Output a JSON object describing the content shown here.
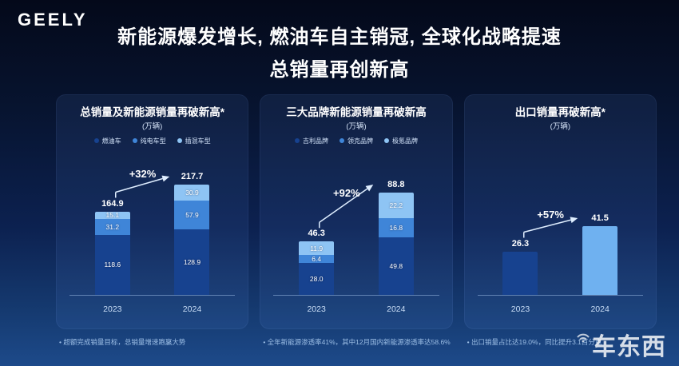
{
  "logo": "GEELY",
  "title": {
    "line1": "新能源爆发增长, 燃油车自主销冠, 全球化战略提速",
    "line2": "总销量再创新高"
  },
  "watermark": "车东西",
  "panels": [
    {
      "title": "总销量及新能源销量再破新高*",
      "unit": "(万辆)",
      "growth": "+32%",
      "legend": [
        {
          "label": "燃油车",
          "color": "#17428f"
        },
        {
          "label": "纯电车型",
          "color": "#3f85d8"
        },
        {
          "label": "插混车型",
          "color": "#8ec4f4"
        }
      ],
      "bars": [
        {
          "category": "2023",
          "total": "164.9",
          "segments": [
            {
              "label": "118.6",
              "value": 118.6,
              "color": "#17428f"
            },
            {
              "label": "31.2",
              "value": 31.2,
              "color": "#3f85d8"
            },
            {
              "label": "15.1",
              "value": 15.1,
              "color": "#8ec4f4"
            }
          ]
        },
        {
          "category": "2024",
          "total": "217.7",
          "segments": [
            {
              "label": "128.9",
              "value": 128.9,
              "color": "#17428f"
            },
            {
              "label": "57.9",
              "value": 57.9,
              "color": "#3f85d8"
            },
            {
              "label": "30.9",
              "value": 30.9,
              "color": "#8ec4f4"
            }
          ]
        }
      ],
      "footnote": "• 超额完成销量目标，总销量增速跑赢大势"
    },
    {
      "title": "三大品牌新能源销量再破新高",
      "unit": "(万辆)",
      "growth": "+92%",
      "legend": [
        {
          "label": "吉利品牌",
          "color": "#17428f"
        },
        {
          "label": "领克品牌",
          "color": "#3f85d8"
        },
        {
          "label": "极氪品牌",
          "color": "#8ec4f4"
        }
      ],
      "bars": [
        {
          "category": "2023",
          "total": "46.3",
          "segments": [
            {
              "label": "28.0",
              "value": 28.0,
              "color": "#17428f"
            },
            {
              "label": "6.4",
              "value": 6.4,
              "color": "#3f85d8"
            },
            {
              "label": "11.9",
              "value": 11.9,
              "color": "#8ec4f4"
            }
          ]
        },
        {
          "category": "2024",
          "total": "88.8",
          "segments": [
            {
              "label": "49.8",
              "value": 49.8,
              "color": "#17428f"
            },
            {
              "label": "16.8",
              "value": 16.8,
              "color": "#3f85d8"
            },
            {
              "label": "22.2",
              "value": 22.2,
              "color": "#8ec4f4"
            }
          ]
        }
      ],
      "footnote": "• 全年新能源渗透率41%，其中12月国内新能源渗透率达58.6%"
    },
    {
      "title": "出口销量再破新高*",
      "unit": "(万辆)",
      "growth": "+57%",
      "legend": [],
      "bars": [
        {
          "category": "2023",
          "total": "26.3",
          "segments": [
            {
              "label": "",
              "value": 26.3,
              "color": "#17428f"
            }
          ]
        },
        {
          "category": "2024",
          "total": "41.5",
          "segments": [
            {
              "label": "",
              "value": 41.5,
              "color": "#6fb1f0"
            }
          ]
        }
      ],
      "footnote": "• 出口销量占比达19.0%，同比提升3.1百分点"
    }
  ],
  "chart_data": [
    {
      "type": "bar",
      "stacked": true,
      "title": "总销量及新能源销量再破新高*",
      "unit": "万辆",
      "categories": [
        "2023",
        "2024"
      ],
      "series": [
        {
          "name": "燃油车",
          "values": [
            118.6,
            128.9
          ]
        },
        {
          "name": "纯电车型",
          "values": [
            31.2,
            57.9
          ]
        },
        {
          "name": "插混车型",
          "values": [
            15.1,
            30.9
          ]
        }
      ],
      "totals": [
        164.9,
        217.7
      ],
      "growth_label": "+32%",
      "legend_position": "top"
    },
    {
      "type": "bar",
      "stacked": true,
      "title": "三大品牌新能源销量再破新高",
      "unit": "万辆",
      "categories": [
        "2023",
        "2024"
      ],
      "series": [
        {
          "name": "吉利品牌",
          "values": [
            28.0,
            49.8
          ]
        },
        {
          "name": "领克品牌",
          "values": [
            6.4,
            16.8
          ]
        },
        {
          "name": "极氪品牌",
          "values": [
            11.9,
            22.2
          ]
        }
      ],
      "totals": [
        46.3,
        88.8
      ],
      "growth_label": "+92%",
      "legend_position": "top"
    },
    {
      "type": "bar",
      "stacked": false,
      "title": "出口销量再破新高*",
      "unit": "万辆",
      "categories": [
        "2023",
        "2024"
      ],
      "series": [
        {
          "name": "出口销量",
          "values": [
            26.3,
            41.5
          ]
        }
      ],
      "totals": [
        26.3,
        41.5
      ],
      "growth_label": "+57%",
      "legend_position": "none"
    }
  ]
}
